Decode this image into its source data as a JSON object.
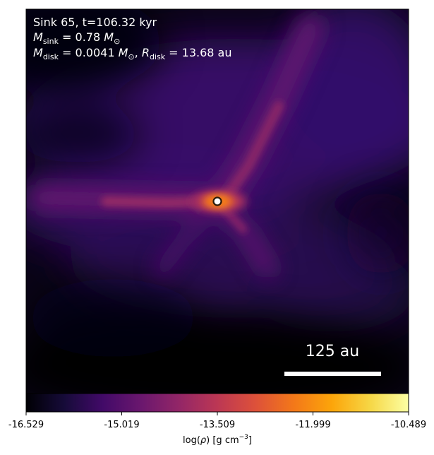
{
  "figure": {
    "sink_line": "Sink 65, t=106.32 kyr",
    "mass_line": {
      "symbol": "M",
      "subscript": "sink",
      "value": " = 0.78 ",
      "unit_symbol": "M",
      "unit_subscript": "⊙"
    },
    "disk_line": {
      "mass_symbol": "M",
      "mass_subscript": "disk",
      "mass_value": " = 0.0041 ",
      "mass_unit_symbol": "M",
      "mass_unit_subscript": "⊙",
      "separator": ", ",
      "radius_symbol": "R",
      "radius_subscript": "disk",
      "radius_value": " = 13.68 au"
    },
    "scale_bar_label": "125 au",
    "scale_bar_value_au": 125
  },
  "colorbar": {
    "colormap": "inferno",
    "min": -16.529,
    "max": -10.489,
    "tick_labels": [
      "-16.529",
      "-15.019",
      "-13.509",
      "-11.999",
      "-10.489"
    ],
    "label": {
      "prefix": "log(",
      "rho": "ρ",
      "middle": ") [g cm",
      "exponent": "−3",
      "suffix": "]"
    }
  },
  "colors": {
    "background_min": "#000004",
    "filament": "#57106e",
    "core": "#f57d15",
    "annotation_text": "#ffffff",
    "sink_edge": "#2a1a0a",
    "sink_fill": "#ffffff"
  }
}
